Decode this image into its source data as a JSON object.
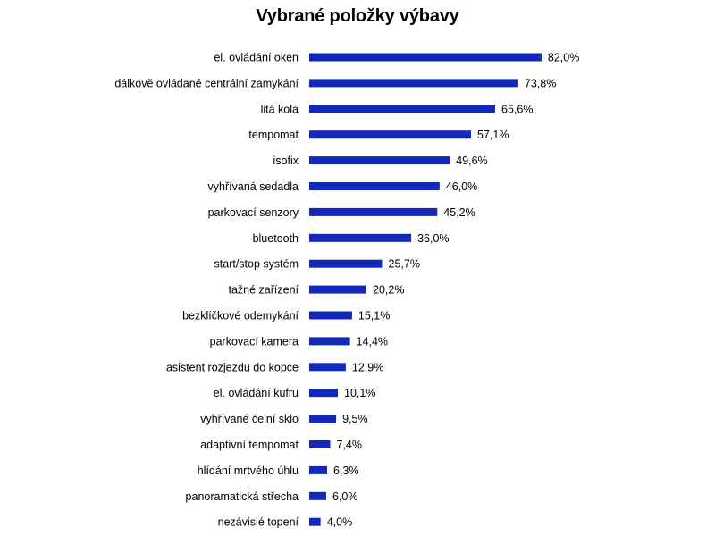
{
  "chart_data": {
    "type": "bar",
    "orientation": "horizontal",
    "title": "Vybrané položky výbavy",
    "xlabel": "",
    "ylabel": "",
    "xlim": [
      0,
      100
    ],
    "grid": false,
    "legend": "none",
    "bar_color": "#1128B8",
    "value_format": "percent-one-decimal-comma",
    "categories": [
      "el. ovládání oken",
      "dálkově ovládané centrální zamykání",
      "litá kola",
      "tempomat",
      "isofix",
      "vyhřívaná sedadla",
      "parkovací senzory",
      "bluetooth",
      "start/stop systém",
      "tažné zařízení",
      "bezklíčkové odemykání",
      "parkovací kamera",
      "asistent rozjezdu do kopce",
      "el. ovládání kufru",
      "vyhřívané čelní sklo",
      "adaptivní tempomat",
      "hlídání mrtvého úhlu",
      "panoramatická střecha",
      "nezávislé topení"
    ],
    "values": [
      82.0,
      73.8,
      65.6,
      57.1,
      49.6,
      46.0,
      45.2,
      36.0,
      25.7,
      20.2,
      15.1,
      14.4,
      12.9,
      10.1,
      9.5,
      7.4,
      6.3,
      6.0,
      4.0
    ],
    "value_labels": [
      "82,0%",
      "73,8%",
      "65,6%",
      "57,1%",
      "49,6%",
      "46,0%",
      "45,2%",
      "36,0%",
      "25,7%",
      "20,2%",
      "15,1%",
      "14,4%",
      "12,9%",
      "10,1%",
      "9,5%",
      "7,4%",
      "6,3%",
      "6,0%",
      "4,0%"
    ]
  }
}
